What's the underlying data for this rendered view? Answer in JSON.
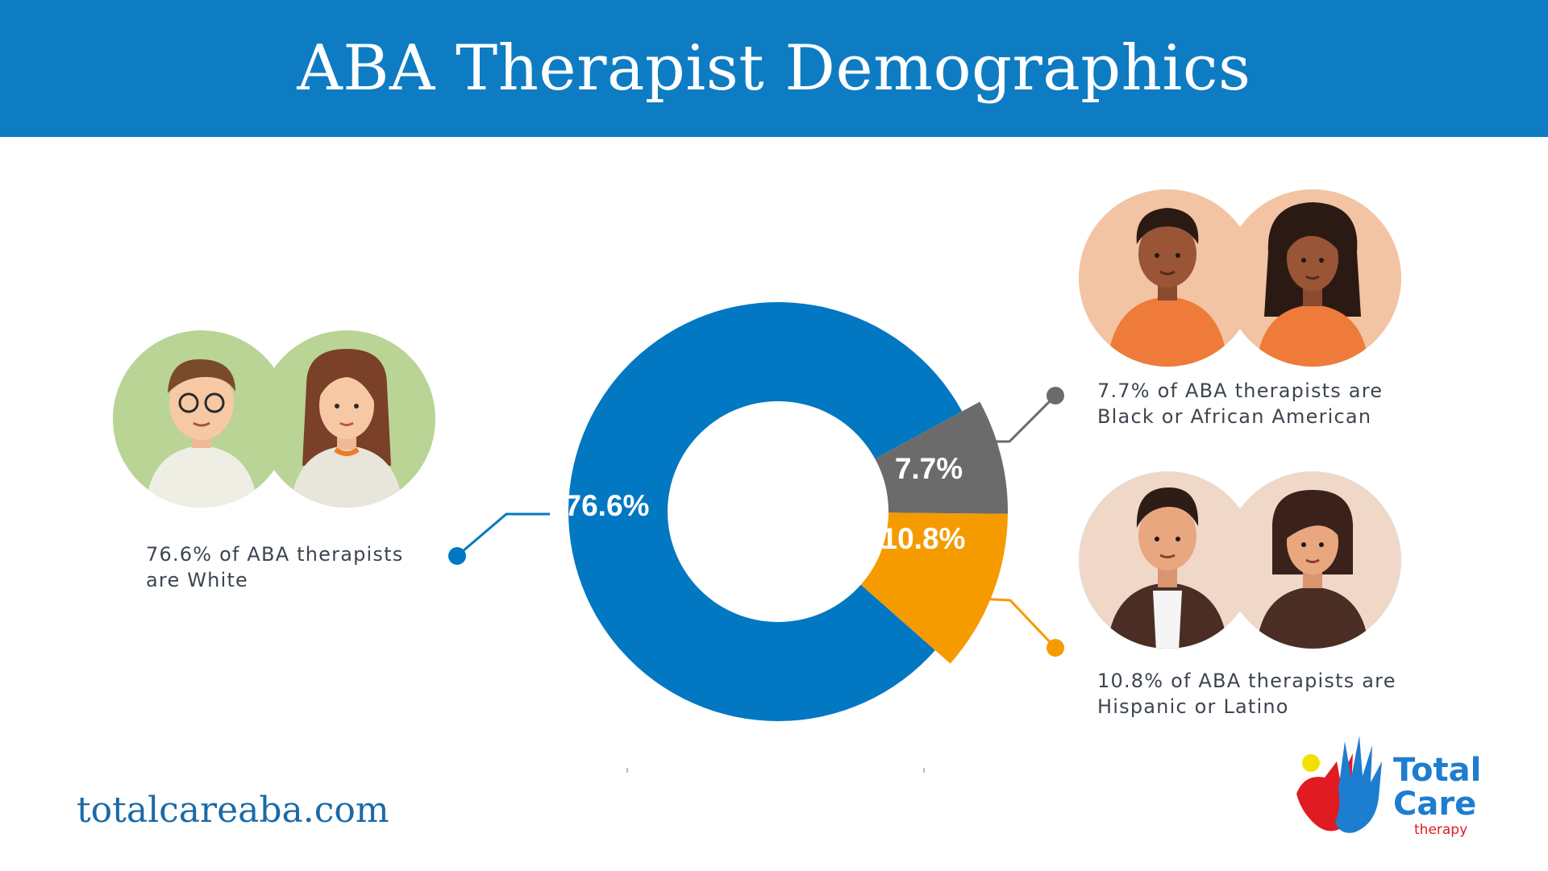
{
  "header": {
    "title": "ABA Therapist Demographics"
  },
  "chart_data": {
    "type": "pie",
    "variant": "donut",
    "series": [
      {
        "label": "76.6%",
        "value": 76.6,
        "color": "#0277c2"
      },
      {
        "label": "7.7%",
        "value": 7.7,
        "color": "#6b6b6b"
      },
      {
        "label": "10.8%",
        "value": 10.8,
        "color": "#f59b00"
      }
    ],
    "annotations": [
      {
        "line1": "76.6% of ABA therapists",
        "line2": "are White"
      },
      {
        "line1": "7.7% of ABA therapists are",
        "line2": "Black or African American"
      },
      {
        "line1": "10.8% of ABA therapists are",
        "line2": "Hispanic or Latino"
      }
    ]
  },
  "avatars": {
    "white": {
      "bg": "#b9d495",
      "icon": "people-avatars-icon"
    },
    "black": {
      "bg": "#f2c4a3",
      "icon": "people-avatars-icon"
    },
    "hispanic": {
      "bg": "#f0d8c8",
      "icon": "people-avatars-icon"
    }
  },
  "footer": {
    "url": "totalcareaba.com"
  },
  "logo": {
    "line1": "Total",
    "line2": "Care",
    "tagline": "therapy"
  }
}
